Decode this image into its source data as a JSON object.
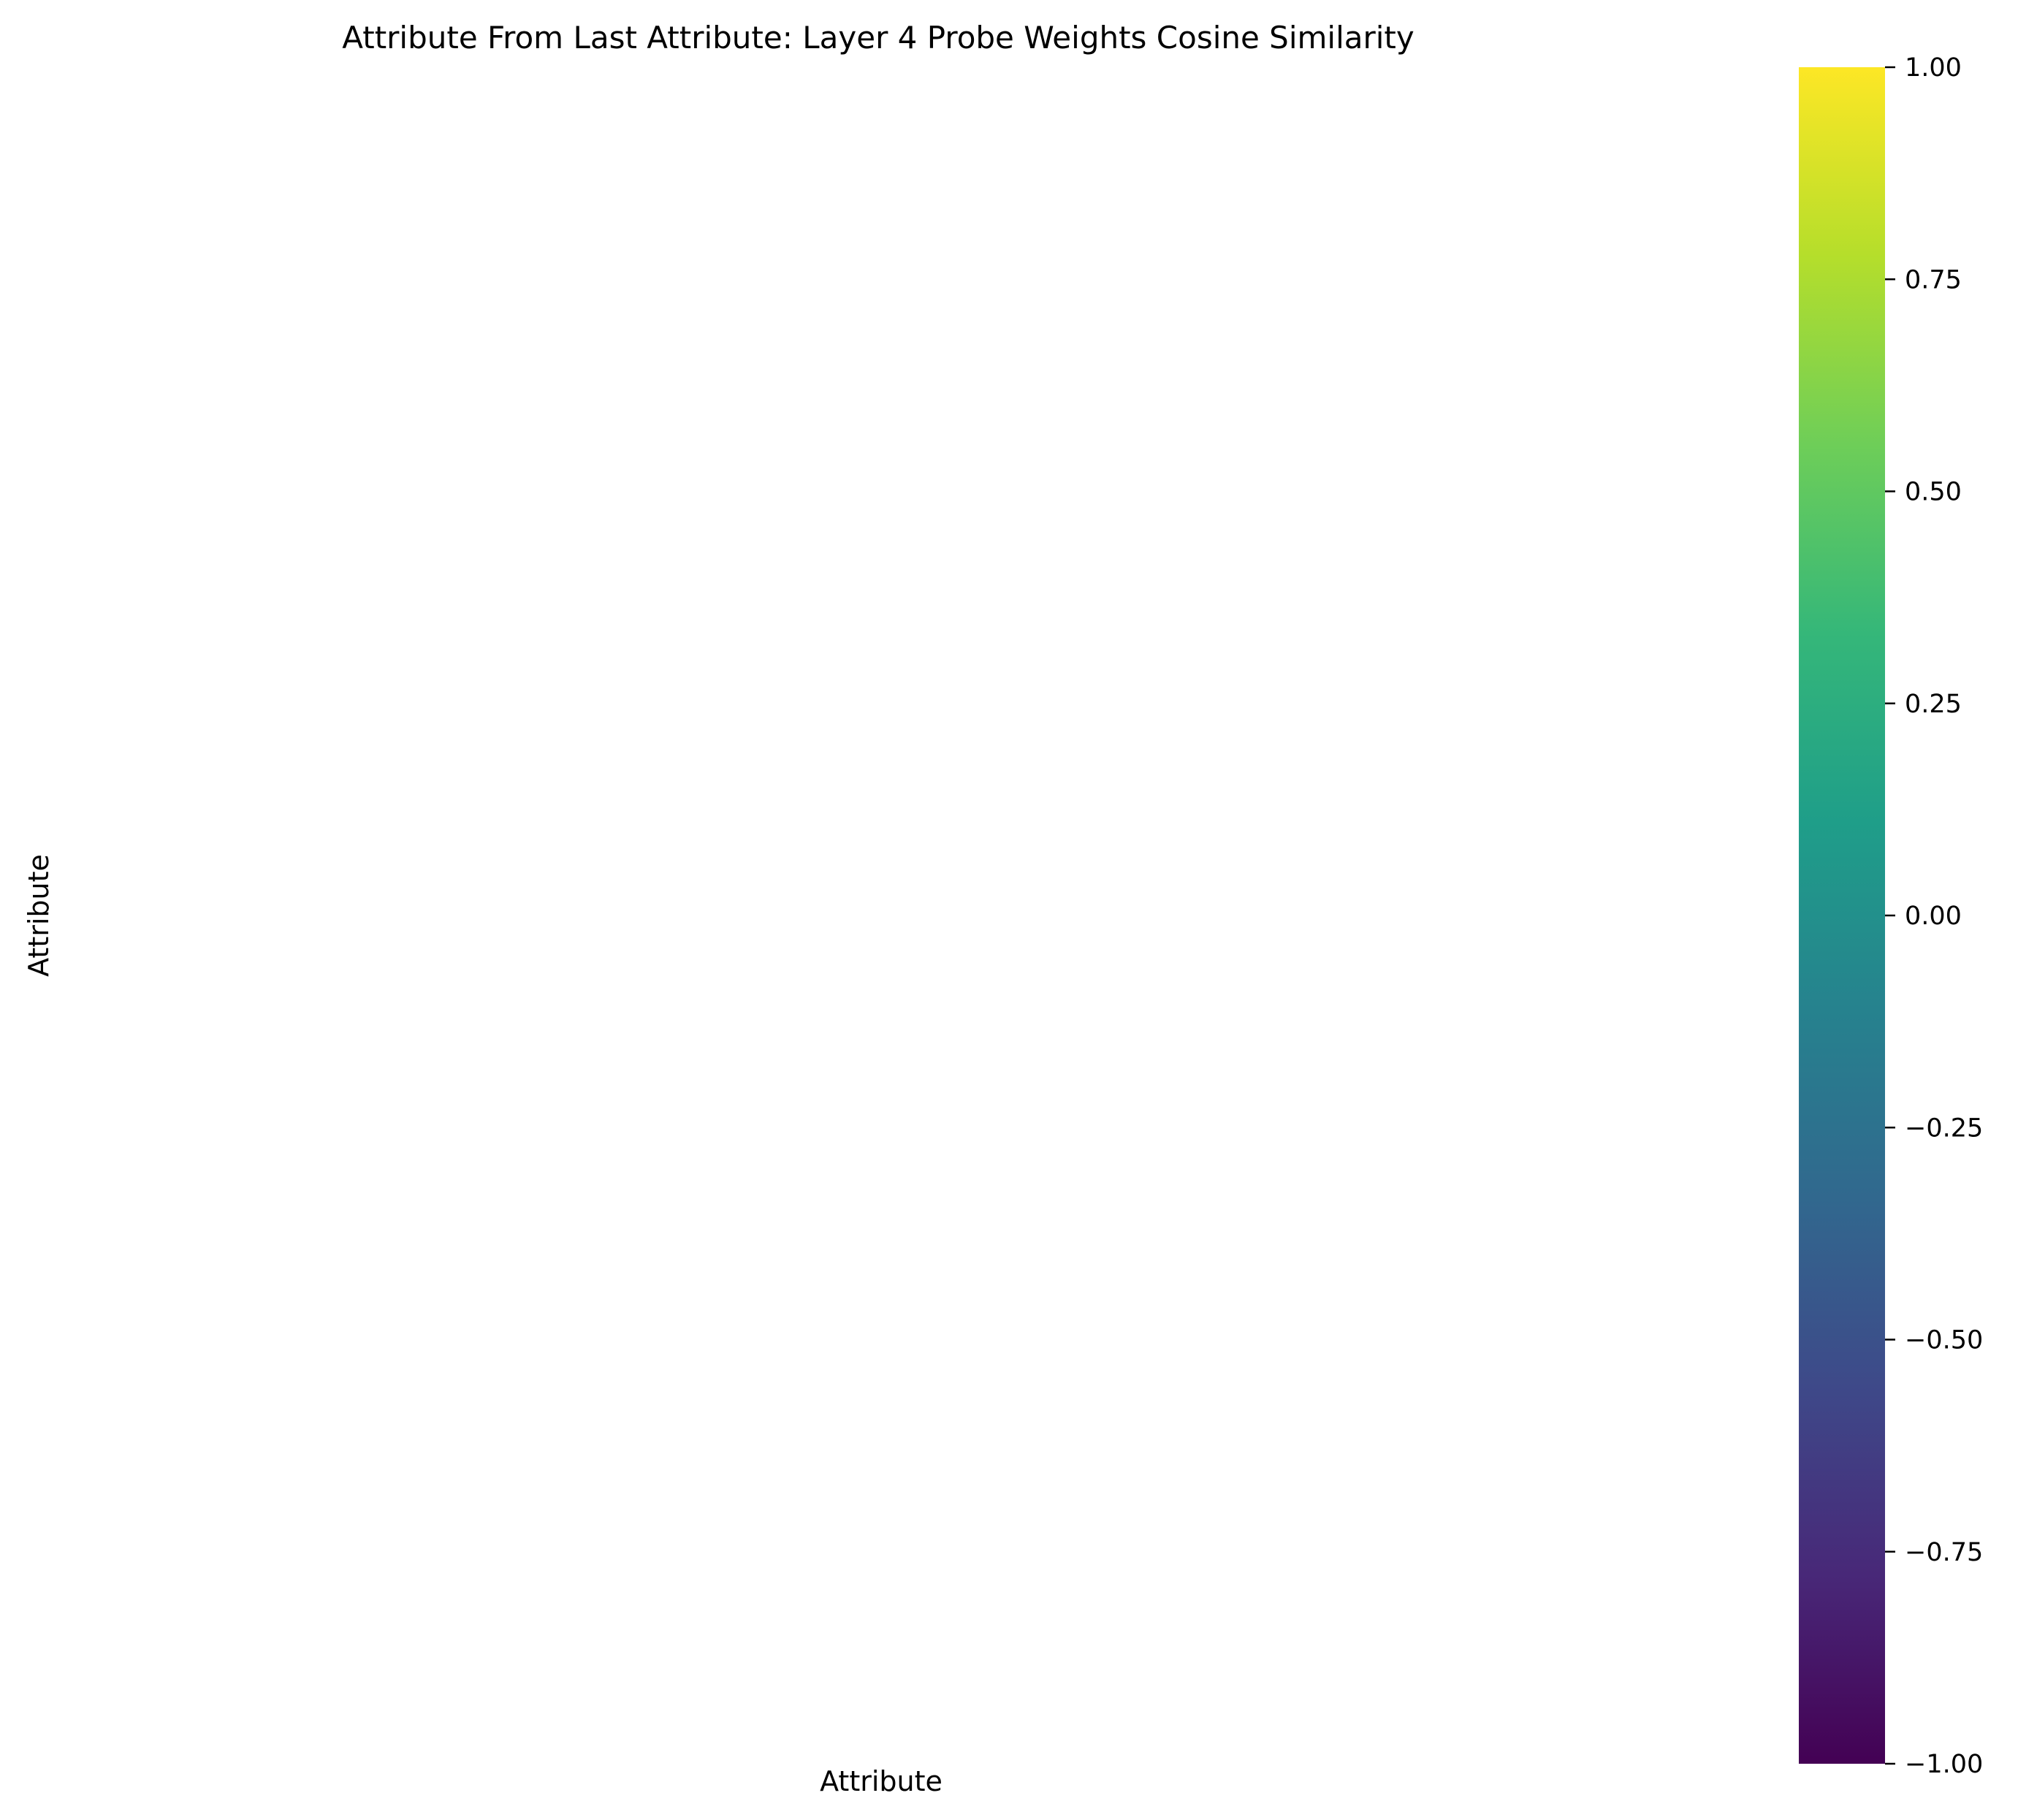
{
  "chart_data": {
    "type": "heatmap",
    "title": "Attribute From Last Attribute: Layer 4 Probe Weights Cosine Similarity",
    "xlabel": "Attribute",
    "ylabel": "Attribute",
    "rows": [],
    "columns": [],
    "values": [],
    "colorbar": {
      "colormap": "viridis",
      "vmin": -1.0,
      "vmax": 1.0,
      "ticks": [
        "1.00",
        "0.75",
        "0.50",
        "0.25",
        "0.00",
        "−0.25",
        "−0.50",
        "−0.75",
        "−1.00"
      ],
      "tick_values": [
        1.0,
        0.75,
        0.5,
        0.25,
        0.0,
        -0.25,
        -0.5,
        -0.75,
        -1.0
      ],
      "colors": [
        "#fde725",
        "#b5de2b",
        "#6ece58",
        "#35b779",
        "#1f9e89",
        "#26828e",
        "#31688e",
        "#3e4989",
        "#482878",
        "#440154"
      ]
    }
  }
}
